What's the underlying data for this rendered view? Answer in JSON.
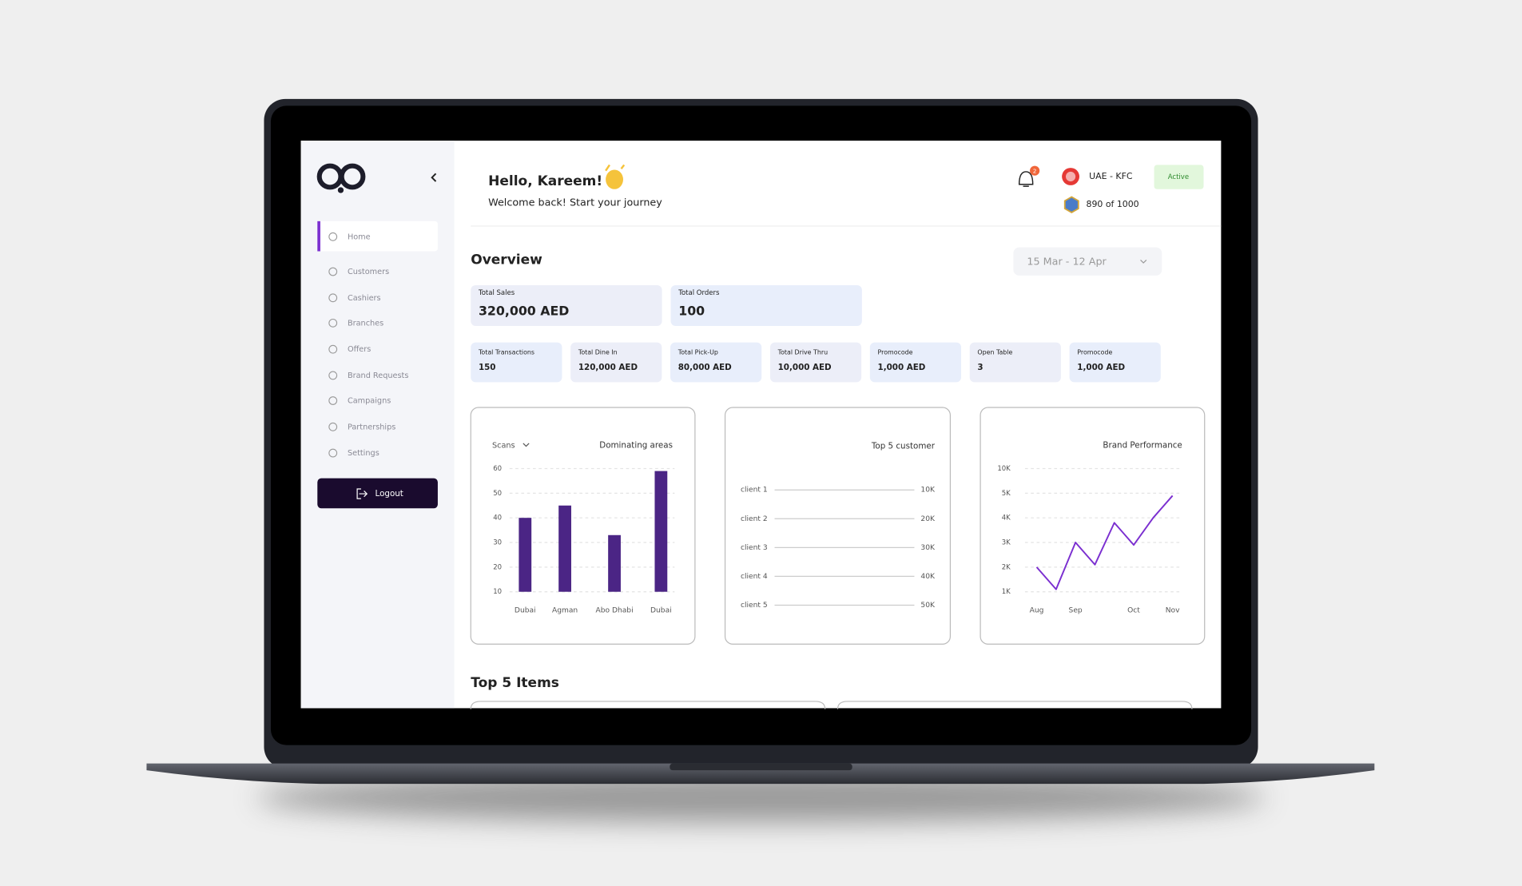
{
  "sidebar": {
    "menu": [
      "Home",
      "Customers",
      "Cashiers",
      "Branches",
      "Offers",
      "Brand Requests",
      "Campaigns",
      "Partnerships",
      "Settings"
    ],
    "logout": "Logout"
  },
  "header": {
    "greeting": "Hello, Kareem!",
    "subtitle": "Welcome back! Start your journey",
    "notifications": "2",
    "brand": "UAE - KFC",
    "status": "Active",
    "points": "890 of 1000"
  },
  "overview": {
    "title": "Overview",
    "date_range": "15 Mar - 12 Apr",
    "main_cards": [
      {
        "label": "Total Sales",
        "value": "320,000 AED"
      },
      {
        "label": "Total Orders",
        "value": "100"
      }
    ],
    "cards": [
      {
        "label": "Total Transactions",
        "value": "150"
      },
      {
        "label": "Total Dine In",
        "value": "120,000 AED"
      },
      {
        "label": "Total Pick-Up",
        "value": "80,000 AED"
      },
      {
        "label": "Total Drive Thru",
        "value": "10,000 AED"
      },
      {
        "label": "Promocode",
        "value": "1,000 AED"
      },
      {
        "label": "Open Table",
        "value": "3"
      },
      {
        "label": "Promocode",
        "value": "1,000 AED"
      }
    ]
  },
  "chart_data": [
    {
      "type": "bar",
      "title": "Dominating areas",
      "dropdown": "Scans",
      "categories": [
        "Dubai",
        "Agman",
        "Abo Dhabi",
        "Dubai"
      ],
      "values": [
        40,
        45,
        33,
        59
      ],
      "color": "#4b2585",
      "ylim": [
        10,
        60
      ],
      "yticks": [
        10,
        20,
        30,
        40,
        50,
        60
      ],
      "grid": true
    },
    {
      "type": "line",
      "title": "Brand Performance",
      "categories": [
        "Aug",
        null,
        "Sep",
        null,
        null,
        "Oct",
        null,
        "Nov"
      ],
      "values": [
        2000,
        1100,
        3000,
        2100,
        3800,
        2900,
        4000,
        4900
      ],
      "color": "#7b2fd0",
      "ylim": [
        1000,
        10000
      ],
      "yticks": [
        {
          "value": 1000,
          "label": "1K"
        },
        {
          "value": 2000,
          "label": "2K"
        },
        {
          "value": 3000,
          "label": "3K"
        },
        {
          "value": 4000,
          "label": "4K"
        },
        {
          "value": 5000,
          "label": "5K"
        },
        {
          "value": 10000,
          "label": "10K"
        }
      ],
      "grid": true
    }
  ],
  "top_customers": {
    "title": "Top 5 customer",
    "rows": [
      {
        "name": "client 1",
        "value": "10K"
      },
      {
        "name": "client 2",
        "value": "20K"
      },
      {
        "name": "client 3",
        "value": "30K"
      },
      {
        "name": "client 4",
        "value": "40K"
      },
      {
        "name": "client 5",
        "value": "50K"
      }
    ]
  },
  "top_items": {
    "title": "Top 5 Items"
  }
}
